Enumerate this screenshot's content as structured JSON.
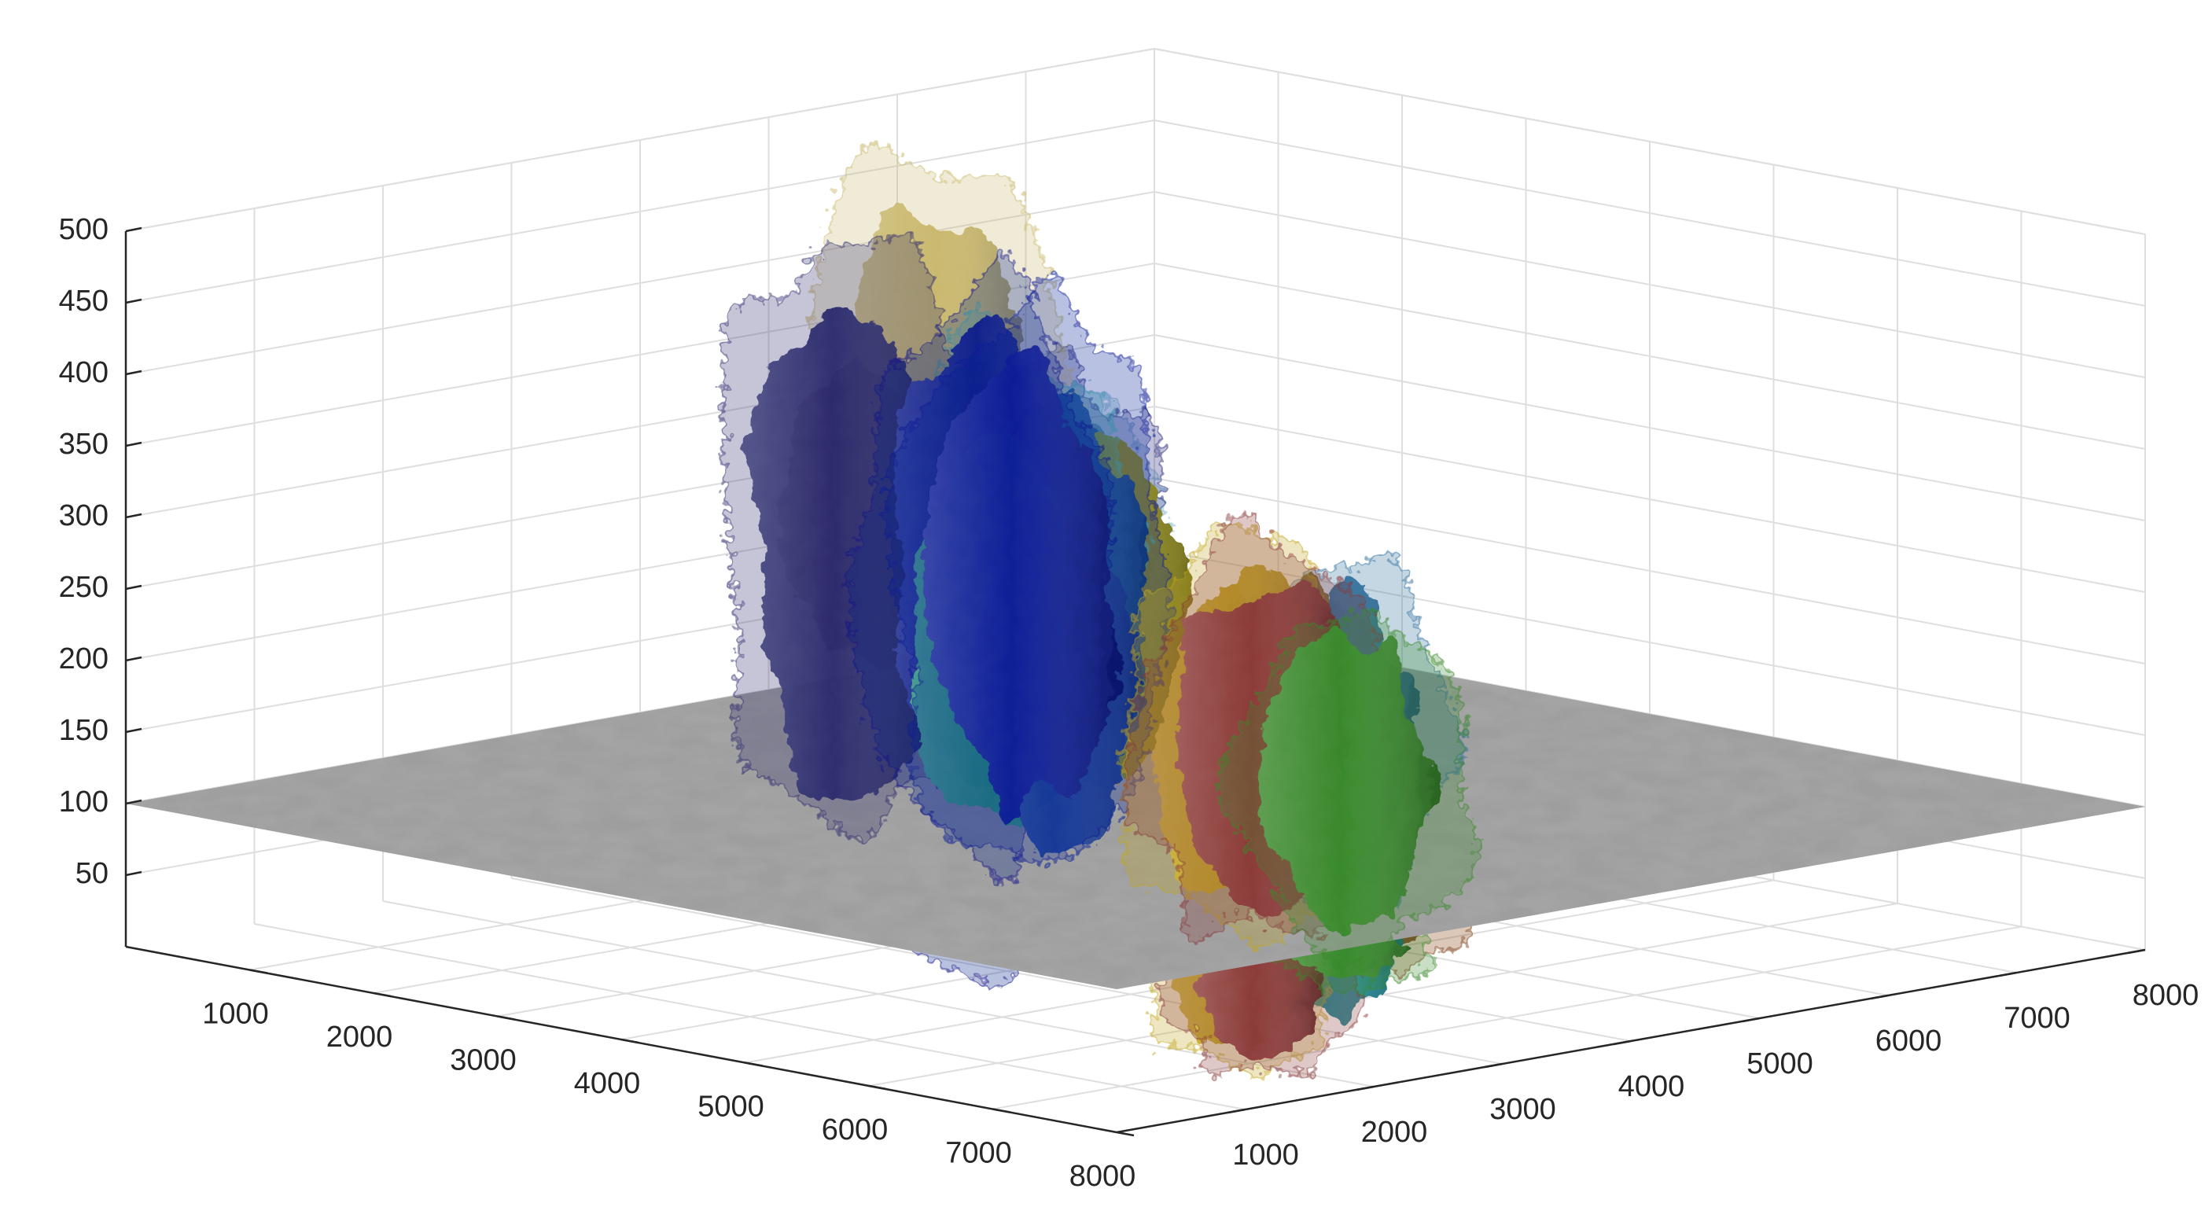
{
  "chart_data": {
    "type": "3d-surface",
    "title": "",
    "xlabel": "",
    "ylabel": "",
    "zlabel": "",
    "grid": true,
    "x_ticks": [
      1000,
      2000,
      3000,
      4000,
      5000,
      6000,
      7000,
      8000
    ],
    "y_ticks": [
      1000,
      2000,
      3000,
      4000,
      5000,
      6000,
      7000,
      8000
    ],
    "z_ticks": [
      50,
      100,
      150,
      200,
      250,
      300,
      350,
      400,
      450,
      500
    ],
    "xlim": [
      0,
      8000
    ],
    "ylim": [
      0,
      8000
    ],
    "zlim": [
      0,
      500
    ],
    "slice_plane_z": 100,
    "slice_plane_texture": "grayscale electron micrograph",
    "surfaces": [
      {
        "color": "#7bb4c9",
        "x": 1100,
        "y": 6100,
        "z_min": 0,
        "z_max": 290,
        "halo": true
      },
      {
        "color": "#c9b76b",
        "x": 1700,
        "y": 4700,
        "z_min": 100,
        "z_max": 460,
        "halo": true
      },
      {
        "color": "#c8a060",
        "x": 1300,
        "y": 5100,
        "z_min": 100,
        "z_max": 330,
        "halo": true
      },
      {
        "color": "#1d4c8c",
        "x": 1700,
        "y": 5600,
        "z_min": 0,
        "z_max": 300,
        "halo": false
      },
      {
        "color": "#a01808",
        "x": 2300,
        "y": 4600,
        "z_min": 120,
        "z_max": 350,
        "halo": false
      },
      {
        "color": "#23237a",
        "x": 2000,
        "y": 5200,
        "z_min": 100,
        "z_max": 320,
        "halo": true
      },
      {
        "color": "#0f1a8a",
        "x": 3600,
        "y": 3200,
        "z_min": 0,
        "z_max": 430,
        "halo": true
      },
      {
        "color": "#8c8616",
        "x": 3400,
        "y": 4400,
        "z_min": 100,
        "z_max": 320,
        "halo": false
      },
      {
        "color": "#8a6512",
        "x": 4400,
        "y": 4900,
        "z_min": 0,
        "z_max": 240,
        "halo": false
      },
      {
        "color": "#1b5a9c",
        "x": 3700,
        "y": 3700,
        "z_min": 100,
        "z_max": 360,
        "halo": false
      },
      {
        "color": "#2d2a6e",
        "x": 3000,
        "y": 2700,
        "z_min": 100,
        "z_max": 460,
        "halo": true
      },
      {
        "color": "#6a1210",
        "x": 3000,
        "y": 2900,
        "z_min": 200,
        "z_max": 400,
        "halo": false
      },
      {
        "color": "#4bb8b0",
        "x": 3300,
        "y": 3600,
        "z_min": 150,
        "z_max": 390,
        "halo": true
      },
      {
        "color": "#238a7a",
        "x": 4400,
        "y": 2600,
        "z_min": 100,
        "z_max": 380,
        "halo": false
      },
      {
        "color": "#1a4296",
        "x": 4600,
        "y": 2800,
        "z_min": 100,
        "z_max": 320,
        "halo": false
      },
      {
        "color": "#0d1d96",
        "x": 5600,
        "y": 1600,
        "z_min": 150,
        "z_max": 470,
        "halo": true
      },
      {
        "color": "#c23a18",
        "x": 5300,
        "y": 3700,
        "z_min": 0,
        "z_max": 240,
        "halo": false
      },
      {
        "color": "#c2a71c",
        "x": 6600,
        "y": 2300,
        "z_min": 0,
        "z_max": 320,
        "halo": true
      },
      {
        "color": "#1d8a98",
        "x": 6300,
        "y": 3300,
        "z_min": 0,
        "z_max": 210,
        "halo": false
      },
      {
        "color": "#2a6d9c",
        "x": 6700,
        "y": 2900,
        "z_min": 100,
        "z_max": 300,
        "halo": true
      },
      {
        "color": "#3a8a2a",
        "x": 7600,
        "y": 2200,
        "z_min": 70,
        "z_max": 300,
        "halo": true
      },
      {
        "color": "#8a3a3a",
        "x": 6900,
        "y": 2200,
        "z_min": 0,
        "z_max": 330,
        "halo": true
      },
      {
        "color": "#7d3a10",
        "x": 5000,
        "y": 5000,
        "z_min": 0,
        "z_max": 60,
        "halo": true
      }
    ]
  }
}
